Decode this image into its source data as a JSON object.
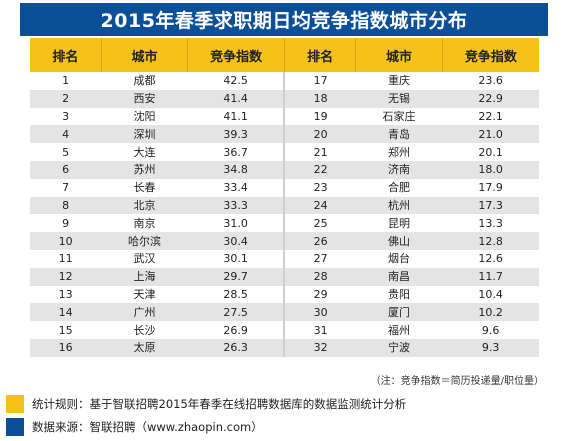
{
  "title": "2015年春季求职期日均竞争指数城市分布",
  "headers": [
    "排名",
    "城市",
    "竞争指数",
    "排名",
    "城市",
    "竞争指数"
  ],
  "rows": [
    [
      "1",
      "成都",
      "42.5",
      "17",
      "重庆",
      "23.6"
    ],
    [
      "2",
      "西安",
      "41.4",
      "18",
      "无锡",
      "22.9"
    ],
    [
      "3",
      "沈阳",
      "41.1",
      "19",
      "石家庄",
      "22.1"
    ],
    [
      "4",
      "深圳",
      "39.3",
      "20",
      "青岛",
      "21.0"
    ],
    [
      "5",
      "大连",
      "36.7",
      "21",
      "郑州",
      "20.1"
    ],
    [
      "6",
      "苏州",
      "34.8",
      "22",
      "济南",
      "18.0"
    ],
    [
      "7",
      "长春",
      "33.4",
      "23",
      "合肥",
      "17.9"
    ],
    [
      "8",
      "北京",
      "33.3",
      "24",
      "杭州",
      "17.3"
    ],
    [
      "9",
      "南京",
      "31.0",
      "25",
      "昆明",
      "13.3"
    ],
    [
      "10",
      "哈尔滨",
      "30.4",
      "26",
      "佛山",
      "12.8"
    ],
    [
      "11",
      "武汉",
      "30.1",
      "27",
      "烟台",
      "12.6"
    ],
    [
      "12",
      "上海",
      "29.7",
      "28",
      "南昌",
      "11.7"
    ],
    [
      "13",
      "天津",
      "28.5",
      "29",
      "贵阳",
      "10.4"
    ],
    [
      "14",
      "广州",
      "27.5",
      "30",
      "厦门",
      "10.2"
    ],
    [
      "15",
      "长沙",
      "26.9",
      "31",
      "福州",
      "9.6"
    ],
    [
      "16",
      "太原",
      "26.3",
      "32",
      "宁波",
      "9.3"
    ]
  ],
  "note": "（注：竞争指数＝简历投递量/职位量）",
  "legend": [
    {
      "label": "统计规则：基于智联招聘2015年春季在线招聘数据库的数据监测统计分析",
      "color": "#f5c11a"
    },
    {
      "label": "数据来源：智联招聘（www.zhaopin.com）",
      "color": "#0a4f98"
    }
  ]
}
